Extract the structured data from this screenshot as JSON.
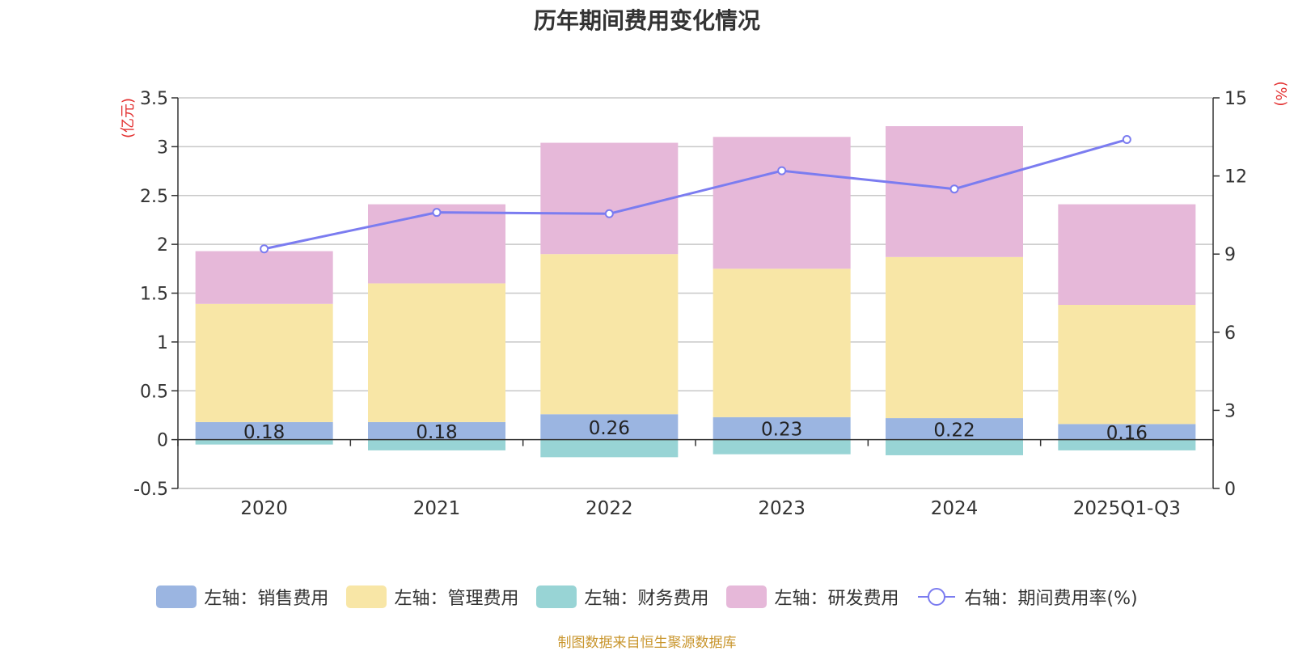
{
  "title": "历年期间费用变化情况",
  "source": "制图数据来自恒生聚源数据库",
  "colors": {
    "sales": "#9bb5e1",
    "admin": "#f8e6a6",
    "finance": "#98d4d5",
    "rd": "#e6b8d9",
    "rate": "#7b7cf0",
    "axis_unit": "#e33030"
  },
  "legend": [
    {
      "key": "sales",
      "label": "左轴：销售费用"
    },
    {
      "key": "admin",
      "label": "左轴：管理费用"
    },
    {
      "key": "finance",
      "label": "左轴：财务费用"
    },
    {
      "key": "rd",
      "label": "左轴：研发费用"
    },
    {
      "key": "rate",
      "label": "右轴：期间费用率(%)"
    }
  ],
  "chart_data": {
    "type": "bar",
    "stacked": true,
    "title": "历年期间费用变化情况",
    "categories": [
      "2020",
      "2021",
      "2022",
      "2023",
      "2024",
      "2025Q1-Q3"
    ],
    "y_left": {
      "label": "(亿元)",
      "min": -0.5,
      "max": 3.5,
      "ticks": [
        -0.5,
        0,
        0.5,
        1,
        1.5,
        2,
        2.5,
        3,
        3.5
      ],
      "tick_labels": [
        "-0.5",
        "0",
        "0.5",
        "1",
        "1.5",
        "2",
        "2.5",
        "3",
        "3.5"
      ]
    },
    "y_right": {
      "label": "(%)",
      "min": 0,
      "max": 15,
      "ticks": [
        0,
        3,
        6,
        9,
        12,
        15
      ],
      "tick_labels": [
        "0",
        "3",
        "6",
        "9",
        "12",
        "15"
      ]
    },
    "series": [
      {
        "key": "sales",
        "name": "左轴：销售费用",
        "axis": "left",
        "values": [
          0.18,
          0.18,
          0.26,
          0.23,
          0.22,
          0.16
        ],
        "data_labels": [
          "0.18",
          "0.18",
          "0.26",
          "0.23",
          "0.22",
          "0.16"
        ]
      },
      {
        "key": "admin",
        "name": "左轴：管理费用",
        "axis": "left",
        "values": [
          1.21,
          1.42,
          1.64,
          1.52,
          1.65,
          1.22
        ]
      },
      {
        "key": "finance",
        "name": "左轴：财务费用",
        "axis": "left",
        "values": [
          -0.05,
          -0.11,
          -0.18,
          -0.15,
          -0.16,
          -0.11
        ]
      },
      {
        "key": "rd",
        "name": "左轴：研发费用",
        "axis": "left",
        "values": [
          0.54,
          0.81,
          1.14,
          1.35,
          1.34,
          1.03
        ]
      },
      {
        "key": "rate",
        "name": "右轴：期间费用率(%)",
        "axis": "right",
        "type": "line",
        "values": [
          9.2,
          10.6,
          10.55,
          12.2,
          11.5,
          13.4
        ]
      }
    ]
  }
}
